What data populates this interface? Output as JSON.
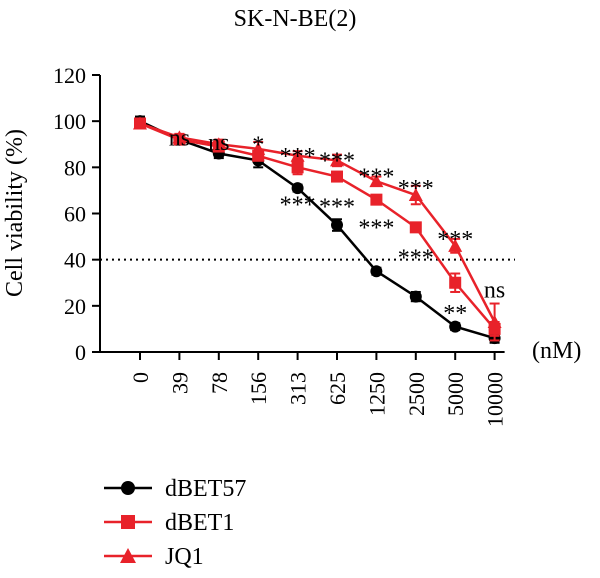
{
  "chart_data": {
    "type": "line",
    "title": "SK-N-BE(2)",
    "ylabel": "Cell viability (%)",
    "xlabel": "",
    "x_unit_label": "(nM)",
    "categories": [
      "0",
      "39",
      "78",
      "156",
      "313",
      "625",
      "1250",
      "2500",
      "5000",
      "10000"
    ],
    "ylim": [
      0,
      120
    ],
    "yticks": [
      "0",
      "20",
      "40",
      "60",
      "80",
      "100",
      "120"
    ],
    "reference_line": {
      "y": 40,
      "style": "dotted"
    },
    "grid": false,
    "legend": "bottom-left",
    "series": [
      {
        "name": "dBET57",
        "color": "#000000",
        "marker": "circle",
        "values": [
          100,
          92,
          86,
          83,
          71,
          55,
          35,
          24,
          11,
          6
        ],
        "errors": [
          2,
          1.5,
          2,
          3,
          1.5,
          2.5,
          1.5,
          2,
          1.5,
          2
        ]
      },
      {
        "name": "dBET1",
        "color": "#e8222a",
        "marker": "square",
        "values": [
          99,
          92,
          89,
          85,
          80,
          76,
          66,
          54,
          30,
          10
        ],
        "errors": [
          1.5,
          1.5,
          2,
          2,
          3,
          2,
          2,
          2,
          4,
          3
        ]
      },
      {
        "name": "JQ1",
        "color": "#e8222a",
        "marker": "triangle",
        "values": [
          99,
          93,
          90,
          88,
          85,
          83,
          74,
          68,
          46,
          13
        ],
        "errors": [
          1.5,
          1.5,
          2,
          3,
          2,
          2.5,
          2,
          4,
          3,
          8
        ]
      }
    ],
    "annotations": [
      {
        "category": "39",
        "y": 93,
        "text": "ns"
      },
      {
        "category": "78",
        "y": 91,
        "text": "ns"
      },
      {
        "category": "156",
        "y": 90,
        "text": "*"
      },
      {
        "category": "313",
        "y": 85,
        "text": "***"
      },
      {
        "category": "625",
        "y": 83,
        "text": "***"
      },
      {
        "category": "1250",
        "y": 76,
        "text": "***"
      },
      {
        "category": "2500",
        "y": 71,
        "text": "***"
      },
      {
        "category": "313",
        "y": 64,
        "text": "***"
      },
      {
        "category": "625",
        "y": 63,
        "text": "***"
      },
      {
        "category": "1250",
        "y": 54,
        "text": "***"
      },
      {
        "category": "2500",
        "y": 41,
        "text": "***"
      },
      {
        "category": "5000",
        "y": 49,
        "text": "***"
      },
      {
        "category": "5000",
        "y": 17,
        "text": "**"
      },
      {
        "category": "10000",
        "y": 27,
        "text": "ns"
      }
    ]
  }
}
